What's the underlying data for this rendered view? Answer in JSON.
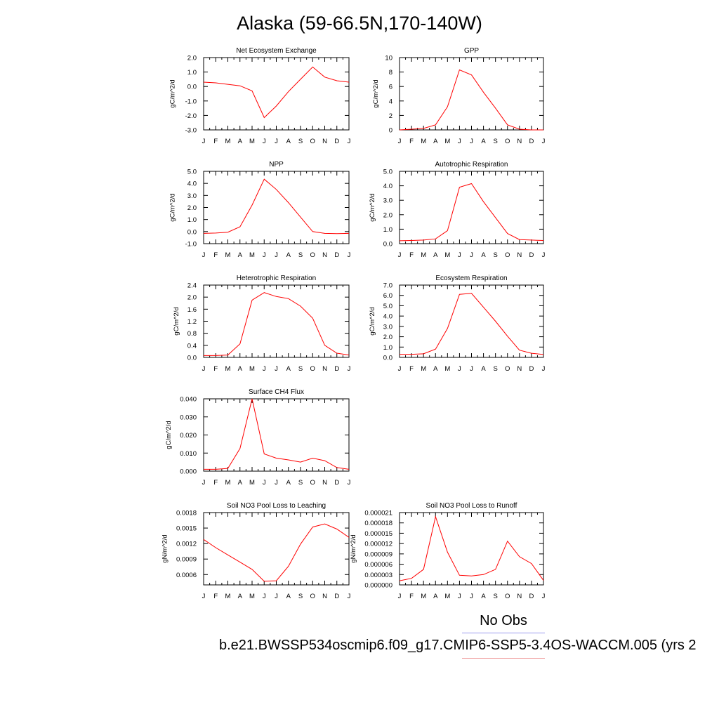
{
  "title": "Alaska (59-66.5N,170-140W)",
  "legend": {
    "obs_label": "No Obs",
    "case_label": "b.e21.BWSSP534oscmip6.f09_g17.CMIP6-SSP5-3.4OS-WACCM.005 (yrs 2",
    "obs_color": "#9999ee",
    "case_color": "#ee9999"
  },
  "chart_data": [
    {
      "type": "line",
      "title": "Net Ecosystem Exchange",
      "ylabel": "gC/m^2/d",
      "categories": [
        "J",
        "F",
        "M",
        "A",
        "M",
        "J",
        "J",
        "A",
        "S",
        "O",
        "N",
        "D",
        "J"
      ],
      "ylim": [
        -3.0,
        2.0
      ],
      "yticks": [
        "-3.0",
        "-2.0",
        "-1.0",
        "0.0",
        "1.0",
        "2.0"
      ],
      "series": [
        {
          "color": "#ff0000",
          "values": [
            0.3,
            0.25,
            0.15,
            0.05,
            -0.3,
            -2.15,
            -1.35,
            -0.35,
            0.5,
            1.35,
            0.65,
            0.4,
            0.3
          ]
        }
      ]
    },
    {
      "type": "line",
      "title": "GPP",
      "ylabel": "gC/m^2/d",
      "categories": [
        "J",
        "F",
        "M",
        "A",
        "M",
        "J",
        "J",
        "A",
        "S",
        "O",
        "N",
        "D",
        "J"
      ],
      "ylim": [
        0,
        10
      ],
      "yticks": [
        "0",
        "2",
        "4",
        "6",
        "8",
        "10"
      ],
      "series": [
        {
          "color": "#ff0000",
          "values": [
            0.0,
            0.1,
            0.2,
            0.7,
            3.2,
            8.3,
            7.6,
            5.2,
            3.0,
            0.7,
            0.1,
            0.0,
            0.0
          ]
        }
      ]
    },
    {
      "type": "line",
      "title": "NPP",
      "ylabel": "gC/m^2/d",
      "categories": [
        "J",
        "F",
        "M",
        "A",
        "M",
        "J",
        "J",
        "A",
        "S",
        "O",
        "N",
        "D",
        "J"
      ],
      "ylim": [
        -1.0,
        5.0
      ],
      "yticks": [
        "-1.0",
        "0.0",
        "1.0",
        "2.0",
        "3.0",
        "4.0",
        "5.0"
      ],
      "series": [
        {
          "color": "#ff0000",
          "values": [
            -0.15,
            -0.12,
            -0.05,
            0.4,
            2.2,
            4.35,
            3.5,
            2.4,
            1.2,
            0.0,
            -0.15,
            -0.17,
            -0.15
          ]
        }
      ]
    },
    {
      "type": "line",
      "title": "Autotrophic Respiration",
      "ylabel": "gC/m^2/d",
      "categories": [
        "J",
        "F",
        "M",
        "A",
        "M",
        "J",
        "J",
        "A",
        "S",
        "O",
        "N",
        "D",
        "J"
      ],
      "ylim": [
        0.0,
        5.0
      ],
      "yticks": [
        "0.0",
        "1.0",
        "2.0",
        "3.0",
        "4.0",
        "5.0"
      ],
      "series": [
        {
          "color": "#ff0000",
          "values": [
            0.2,
            0.22,
            0.25,
            0.33,
            0.9,
            3.9,
            4.15,
            2.9,
            1.8,
            0.7,
            0.28,
            0.25,
            0.22
          ]
        }
      ]
    },
    {
      "type": "line",
      "title": "Heterotrophic Respiration",
      "ylabel": "gC/m^2/d",
      "categories": [
        "J",
        "F",
        "M",
        "A",
        "M",
        "J",
        "J",
        "A",
        "S",
        "O",
        "N",
        "D",
        "J"
      ],
      "ylim": [
        0.0,
        2.4
      ],
      "yticks": [
        "0.0",
        "0.4",
        "0.8",
        "1.2",
        "1.6",
        "2.0",
        "2.4"
      ],
      "series": [
        {
          "color": "#ff0000",
          "values": [
            0.06,
            0.06,
            0.08,
            0.45,
            1.9,
            2.15,
            2.02,
            1.95,
            1.7,
            1.3,
            0.4,
            0.14,
            0.08
          ]
        }
      ]
    },
    {
      "type": "line",
      "title": "Ecosystem Respiration",
      "ylabel": "gC/m^2/d",
      "categories": [
        "J",
        "F",
        "M",
        "A",
        "M",
        "J",
        "J",
        "A",
        "S",
        "O",
        "N",
        "D",
        "J"
      ],
      "ylim": [
        0.0,
        7.0
      ],
      "yticks": [
        "0.0",
        "1.0",
        "2.0",
        "3.0",
        "4.0",
        "5.0",
        "6.0",
        "7.0"
      ],
      "series": [
        {
          "color": "#ff0000",
          "values": [
            0.3,
            0.3,
            0.35,
            0.8,
            2.8,
            6.1,
            6.2,
            4.85,
            3.5,
            2.05,
            0.7,
            0.4,
            0.28
          ]
        }
      ]
    },
    {
      "type": "line",
      "title": "Surface CH4 Flux",
      "ylabel": "gC/m^2/d",
      "categories": [
        "J",
        "F",
        "M",
        "A",
        "M",
        "J",
        "J",
        "A",
        "S",
        "O",
        "N",
        "D",
        "J"
      ],
      "ylim": [
        0.0,
        0.04
      ],
      "yticks": [
        "0.000",
        "0.010",
        "0.020",
        "0.030",
        "0.040"
      ],
      "series": [
        {
          "color": "#ff0000",
          "values": [
            0.001,
            0.001,
            0.0015,
            0.0125,
            0.04,
            0.0095,
            0.0072,
            0.0062,
            0.005,
            0.0072,
            0.0058,
            0.002,
            0.001
          ]
        }
      ]
    },
    {
      "type": "line",
      "title": "Soil NO3 Pool Loss to Leaching",
      "ylabel": "gN/m^2/d",
      "categories": [
        "J",
        "F",
        "M",
        "A",
        "M",
        "J",
        "J",
        "A",
        "S",
        "O",
        "N",
        "D",
        "J"
      ],
      "ylim": [
        0.0004,
        0.0018
      ],
      "yticks": [
        "0.0006",
        "0.0009",
        "0.0012",
        "0.0015",
        "0.0018"
      ],
      "series": [
        {
          "color": "#ff0000",
          "values": [
            0.00128,
            0.00112,
            0.00098,
            0.00084,
            0.0007,
            0.00047,
            0.00048,
            0.00076,
            0.00119,
            0.00152,
            0.00158,
            0.00148,
            0.00132
          ]
        }
      ]
    },
    {
      "type": "line",
      "title": "Soil NO3 Pool Loss to Runoff",
      "ylabel": "gN/m^2/d",
      "categories": [
        "J",
        "F",
        "M",
        "A",
        "M",
        "J",
        "J",
        "A",
        "S",
        "O",
        "N",
        "D",
        "J"
      ],
      "ylim": [
        0.0,
        2.1e-05
      ],
      "yticks": [
        "0.000000",
        "0.000003",
        "0.000006",
        "0.000009",
        "0.000012",
        "0.000015",
        "0.000018",
        "0.000021"
      ],
      "series": [
        {
          "color": "#ff0000",
          "values": [
            1.2e-06,
            1.9e-06,
            4.5e-06,
            1.98e-05,
            9.5e-06,
            2.8e-06,
            2.6e-06,
            3e-06,
            4.5e-06,
            1.27e-05,
            8.2e-06,
            6.2e-06,
            1.3e-06
          ]
        }
      ]
    }
  ]
}
